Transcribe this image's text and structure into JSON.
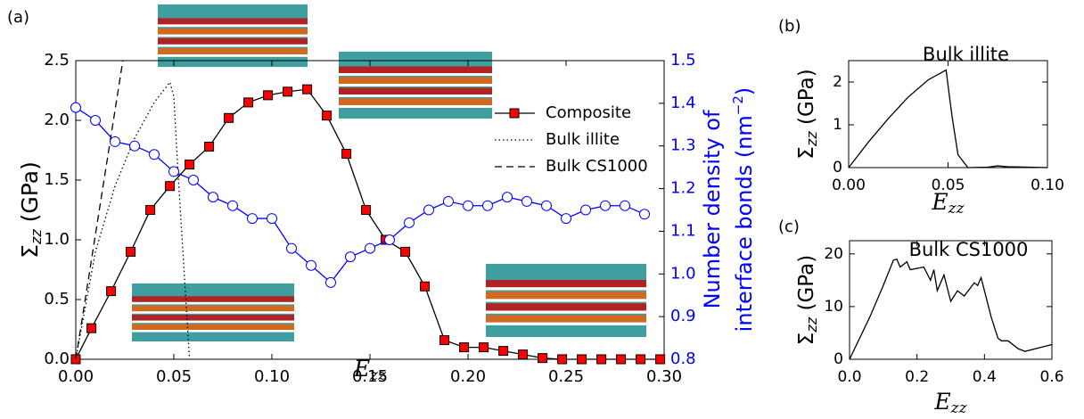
{
  "chart_data": [
    {
      "type": "line",
      "panel": "(a)",
      "xlim": [
        0,
        0.3
      ],
      "xticks": [
        {
          "value": 0,
          "label": "0.00"
        },
        {
          "value": 0.05,
          "label": "0.05"
        },
        {
          "value": 0.1,
          "label": "0.10"
        },
        {
          "value": 0.15,
          "label": "0.15"
        },
        {
          "value": 0.2,
          "label": "0.20"
        },
        {
          "value": 0.25,
          "label": "0.25"
        },
        {
          "value": 0.3,
          "label": "0.30"
        }
      ],
      "ylim": [
        0,
        2.5
      ],
      "yticks": [
        {
          "value": 0,
          "label": "0.0"
        },
        0.5,
        {
          "value": 1,
          "label": "1.0"
        },
        1.5,
        {
          "value": 2,
          "label": "2.0"
        },
        2.5
      ],
      "y2lim": [
        0.8,
        1.5
      ],
      "y2ticks": [
        0.8,
        0.9,
        {
          "value": 1,
          "label": "1.0"
        },
        1.1,
        1.2,
        1.3,
        1.4,
        1.5
      ],
      "xlabel_symbol": "E",
      "xlabel_sub": "zz",
      "ylabel_symbol": "Σ",
      "ylabel_sub": "zz",
      "ylabel_unit": " (GPa)",
      "y2label_lines": [
        "Number density of",
        "interface bonds (nm"
      ],
      "y2label_sup": "−2",
      "y2label_close": ")",
      "y2color": "#0000ff",
      "legend": "center right",
      "series": [
        {
          "name": "Composite",
          "color": "#000000",
          "linestyle": "solid",
          "marker": "square",
          "marker_color": "#ff0000",
          "x": [
            0,
            0.008,
            0.018,
            0.028,
            0.038,
            0.048,
            0.058,
            0.068,
            0.078,
            0.088,
            0.098,
            0.108,
            0.118,
            0.128,
            0.138,
            0.148,
            0.158,
            0.168,
            0.178,
            0.188,
            0.198,
            0.208,
            0.218,
            0.228,
            0.238,
            0.248,
            0.258,
            0.268,
            0.278,
            0.288,
            0.298
          ],
          "values": [
            0,
            0.26,
            0.57,
            0.9,
            1.25,
            1.45,
            1.63,
            1.78,
            2.02,
            2.15,
            2.21,
            2.24,
            2.26,
            2.04,
            1.72,
            1.25,
            1.0,
            0.9,
            0.61,
            0.16,
            0.1,
            0.1,
            0.07,
            0.04,
            0.01,
            0,
            0,
            0,
            0,
            0,
            0
          ]
        },
        {
          "name": "Bulk illite",
          "color": "#000000",
          "linestyle": "dotted",
          "x": [
            0,
            0.01,
            0.02,
            0.03,
            0.04,
            0.048,
            0.05,
            0.052,
            0.055,
            0.058
          ],
          "values": [
            0,
            0.9,
            1.45,
            1.85,
            2.15,
            2.32,
            2.2,
            1.6,
            0.8,
            0
          ]
        },
        {
          "name": "Bulk CS1000",
          "color": "#000000",
          "linestyle": "dashed",
          "x": [
            0,
            0.024
          ],
          "values": [
            0,
            2.5
          ]
        },
        {
          "color": "#0000ff",
          "linestyle": "solid",
          "marker": "circle",
          "marker_color": "#ffffff",
          "axis": "y2",
          "x": [
            0,
            0.01,
            0.02,
            0.03,
            0.04,
            0.05,
            0.06,
            0.07,
            0.08,
            0.09,
            0.1,
            0.11,
            0.12,
            0.13,
            0.14,
            0.15,
            0.16,
            0.17,
            0.18,
            0.19,
            0.2,
            0.21,
            0.22,
            0.23,
            0.24,
            0.25,
            0.26,
            0.27,
            0.28,
            0.29
          ],
          "values": [
            1.39,
            1.36,
            1.31,
            1.3,
            1.28,
            1.24,
            1.22,
            1.18,
            1.16,
            1.13,
            1.13,
            1.06,
            1.02,
            0.98,
            1.04,
            1.06,
            1.08,
            1.12,
            1.15,
            1.17,
            1.16,
            1.16,
            1.18,
            1.17,
            1.16,
            1.13,
            1.15,
            1.16,
            1.16,
            1.14
          ]
        }
      ]
    },
    {
      "type": "line",
      "panel": "(b)",
      "title": "Bulk illite",
      "xlim": [
        0,
        0.1
      ],
      "xticks": [
        {
          "value": 0,
          "label": "0.00"
        },
        {
          "value": 0.05,
          "label": "0.05"
        },
        {
          "value": 0.1,
          "label": "0.10"
        }
      ],
      "ylim": [
        0,
        2.5
      ],
      "yticks": [
        0,
        1,
        2
      ],
      "xlabel_symbol": "E",
      "xlabel_sub": "zz",
      "ylabel_symbol": "Σ",
      "ylabel_sub": "zz",
      "ylabel_unit": " (GPa)",
      "series": [
        {
          "color": "#000000",
          "linestyle": "solid",
          "x": [
            0,
            0.01,
            0.02,
            0.03,
            0.04,
            0.049,
            0.052,
            0.055,
            0.06,
            0.07,
            0.075,
            0.08,
            0.1
          ],
          "values": [
            0,
            0.6,
            1.15,
            1.65,
            2.05,
            2.28,
            1.2,
            0.3,
            0,
            0.01,
            0.04,
            0.02,
            0
          ]
        }
      ]
    },
    {
      "type": "line",
      "panel": "(c)",
      "title": "Bulk CS1000",
      "xlim": [
        0,
        0.6
      ],
      "xticks": [
        {
          "value": 0,
          "label": "0.0"
        },
        0.2,
        0.4,
        0.6
      ],
      "ylim": [
        0,
        22.5
      ],
      "yticks": [
        0,
        10,
        20
      ],
      "xlabel_symbol": "E",
      "xlabel_sub": "zz",
      "ylabel_symbol": "Σ",
      "ylabel_sub": "zz",
      "ylabel_unit": " (GPa)",
      "series": [
        {
          "color": "#000000",
          "linestyle": "solid",
          "x": [
            0,
            0.03,
            0.06,
            0.1,
            0.13,
            0.14,
            0.15,
            0.17,
            0.18,
            0.22,
            0.24,
            0.25,
            0.26,
            0.28,
            0.3,
            0.32,
            0.34,
            0.37,
            0.38,
            0.39,
            0.4,
            0.42,
            0.44,
            0.45,
            0.47,
            0.5,
            0.52,
            0.6
          ],
          "values": [
            0,
            4,
            8,
            14,
            18.8,
            19,
            17.5,
            18.5,
            17,
            17.5,
            15,
            17,
            13,
            16,
            11,
            13,
            12,
            14.5,
            14,
            15.5,
            13,
            8,
            4,
            3.5,
            3.5,
            2,
            1.5,
            2.8
          ]
        }
      ]
    }
  ]
}
